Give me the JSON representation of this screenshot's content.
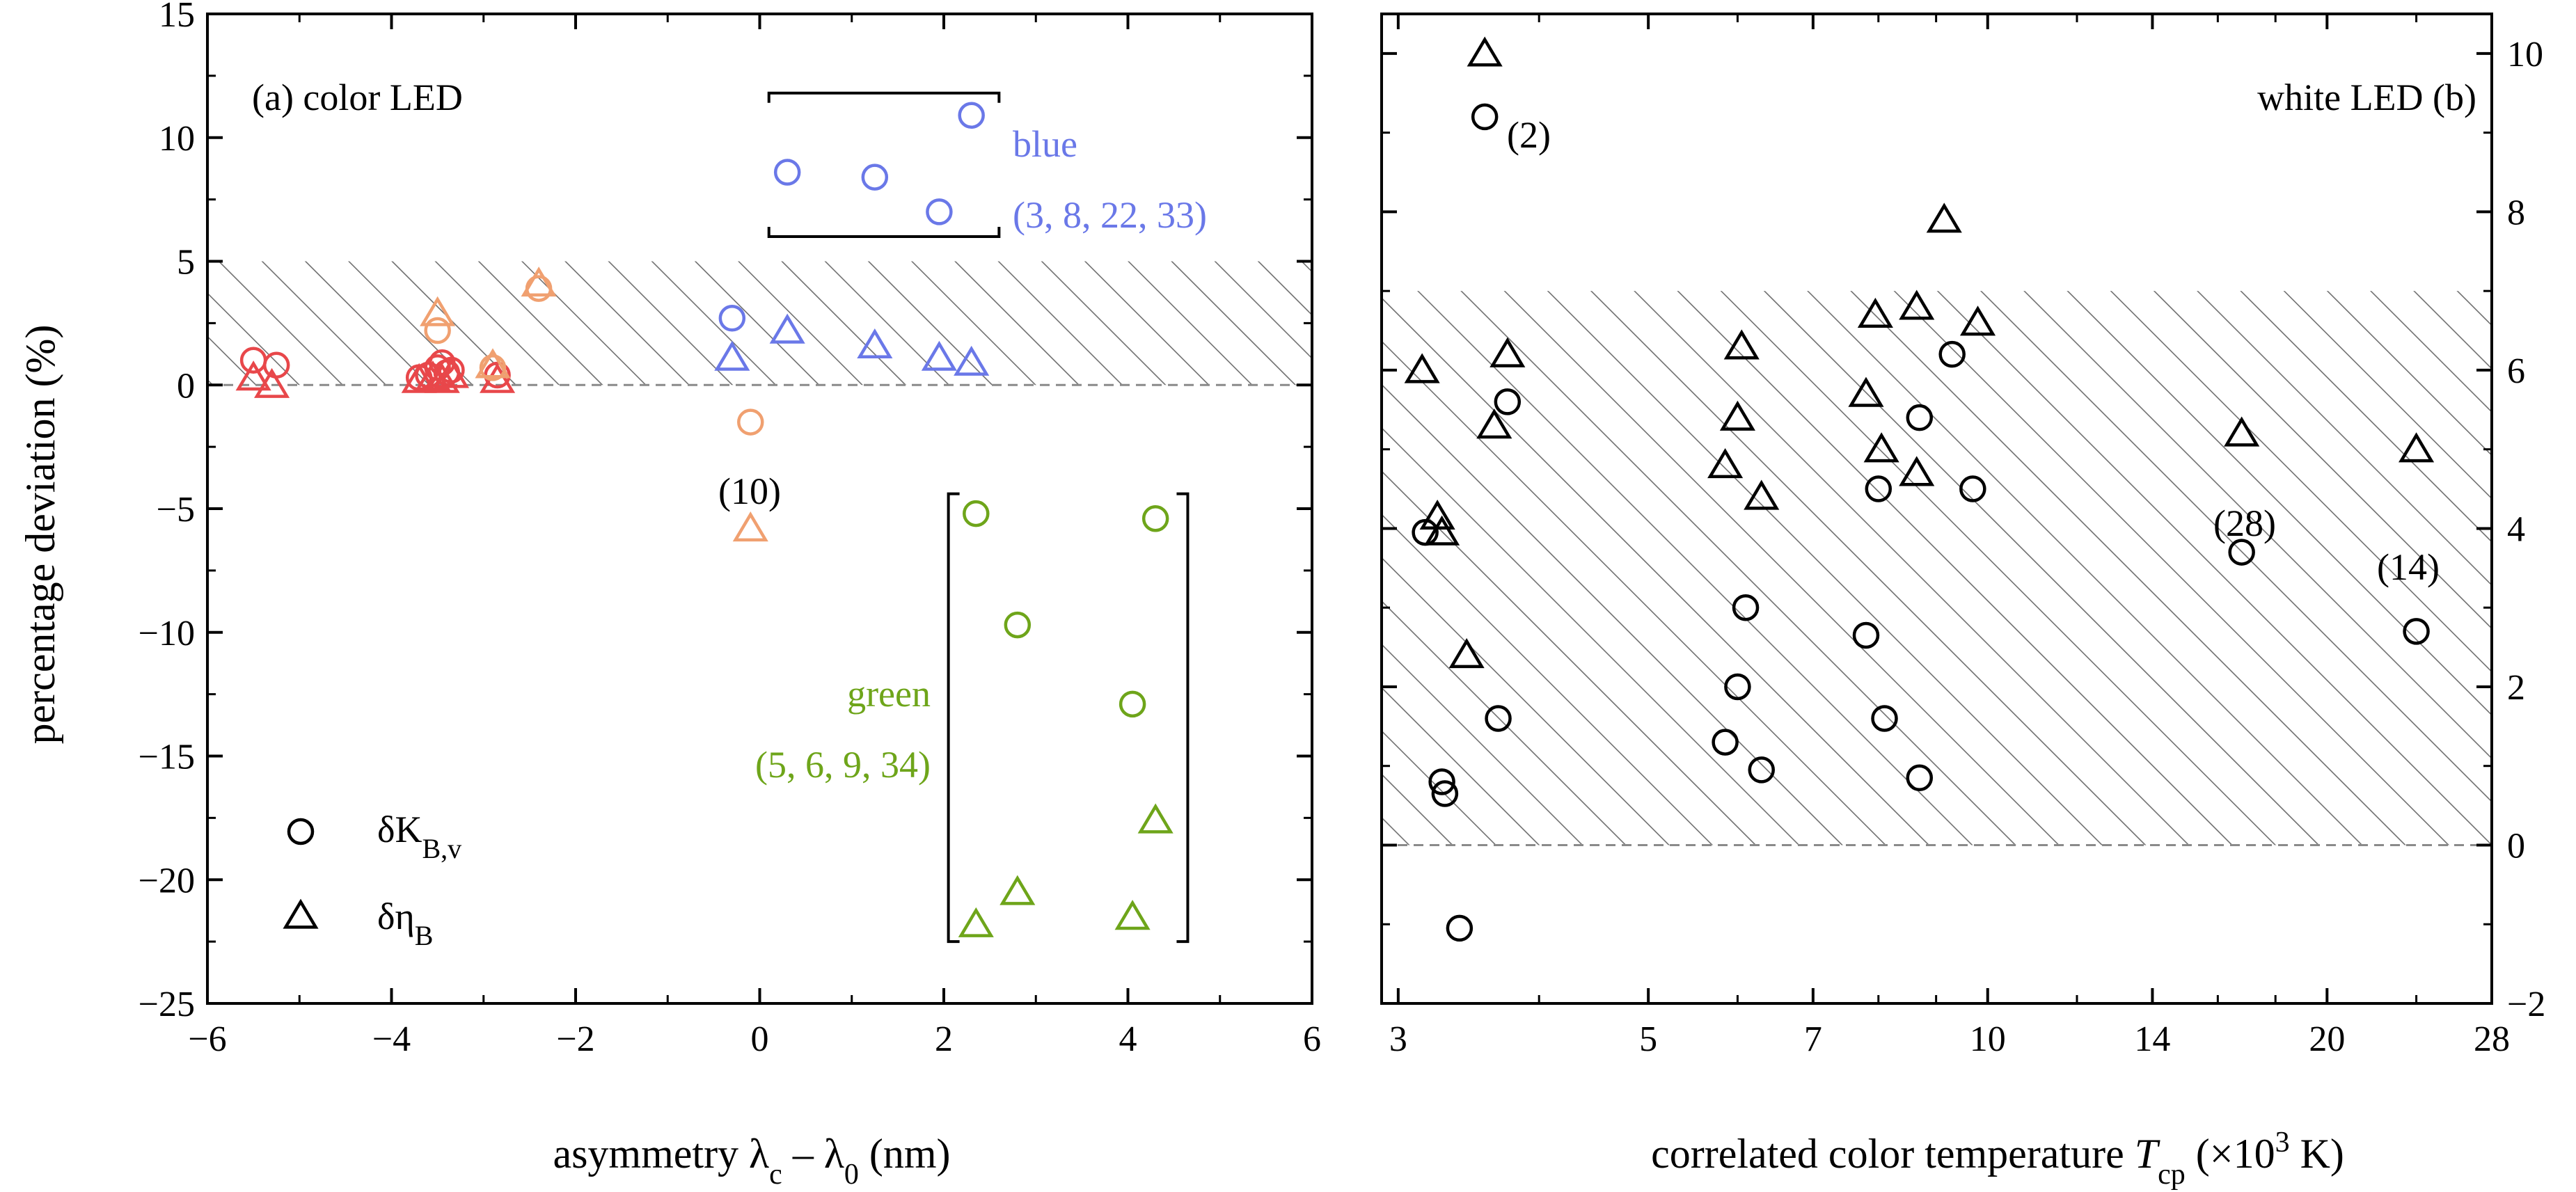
{
  "chart_data": [
    {
      "panel": "a",
      "type": "scatter",
      "annotation": "(a) color LED",
      "xlabel": {
        "prefix": "asymmetry λ",
        "sub1": "c",
        "mid": " – λ",
        "sub2": "0",
        "suffix": " (nm)"
      },
      "ylabel": "percentage deviation (%)",
      "xlim": [
        -6,
        6
      ],
      "ylim": [
        -25,
        15
      ],
      "xticks": [
        -6,
        -4,
        -2,
        0,
        2,
        4,
        6
      ],
      "xtick_labels": [
        "−6",
        "−4",
        "−2",
        "0",
        "2",
        "4",
        "6"
      ],
      "yticks": [
        -25,
        -20,
        -15,
        -10,
        -5,
        0,
        5,
        10,
        15
      ],
      "ytick_labels": [
        "−25",
        "−20",
        "−15",
        "−10",
        "−5",
        "0",
        "5",
        "10",
        "15"
      ],
      "hatched_band": [
        0,
        5
      ],
      "dashed_reference": 0,
      "legend": {
        "position": "bottom-left",
        "entries": [
          {
            "marker": "circle",
            "main": "δK",
            "sub": "B,v"
          },
          {
            "marker": "triangle",
            "main": "δη",
            "sub": "B"
          }
        ]
      },
      "colors": {
        "red": "#e8474a",
        "orange": "#f0a070",
        "blue": "#6a78e8",
        "green": "#6ea51a"
      },
      "labels": {
        "blue": [
          "blue",
          "(3, 8, 22, 33)"
        ],
        "green": [
          "green",
          "(5, 6, 9, 34)"
        ],
        "ten": "(10)"
      },
      "series": [
        {
          "name": "δK_B,v red",
          "marker": "circle",
          "color": "red",
          "points": [
            [
              -5.5,
              1.0
            ],
            [
              -5.25,
              0.8
            ],
            [
              -3.7,
              0.3
            ],
            [
              -3.6,
              0.4
            ],
            [
              -3.5,
              0.7
            ],
            [
              -3.45,
              0.9
            ],
            [
              -3.4,
              0.5
            ],
            [
              -3.35,
              0.6
            ],
            [
              -2.85,
              0.4
            ]
          ]
        },
        {
          "name": "δη_B red",
          "marker": "triangle",
          "color": "red",
          "points": [
            [
              -5.5,
              0.3
            ],
            [
              -5.3,
              0.0
            ],
            [
              -3.7,
              0.2
            ],
            [
              -3.55,
              0.3
            ],
            [
              -3.45,
              0.2
            ],
            [
              -3.35,
              0.4
            ],
            [
              -2.85,
              0.2
            ]
          ]
        },
        {
          "name": "δK_B,v orange",
          "marker": "circle",
          "color": "orange",
          "points": [
            [
              -3.5,
              2.2
            ],
            [
              -2.4,
              3.9
            ],
            [
              -2.9,
              0.7
            ],
            [
              -0.1,
              -1.5
            ]
          ]
        },
        {
          "name": "δη_B orange",
          "marker": "triangle",
          "color": "orange",
          "points": [
            [
              -3.5,
              2.9
            ],
            [
              -2.4,
              4.1
            ],
            [
              -2.9,
              0.8
            ],
            [
              -0.1,
              -5.8
            ]
          ]
        },
        {
          "name": "δK_B,v blue",
          "marker": "circle",
          "color": "blue",
          "points": [
            [
              -0.3,
              2.7
            ],
            [
              0.3,
              8.6
            ],
            [
              1.25,
              8.4
            ],
            [
              1.95,
              7.0
            ],
            [
              2.3,
              10.9
            ]
          ]
        },
        {
          "name": "δη_B blue",
          "marker": "triangle",
          "color": "blue",
          "points": [
            [
              -0.3,
              1.1
            ],
            [
              0.3,
              2.2
            ],
            [
              1.25,
              1.6
            ],
            [
              1.95,
              1.1
            ],
            [
              2.3,
              0.9
            ]
          ]
        },
        {
          "name": "δK_B,v green",
          "marker": "circle",
          "color": "green",
          "points": [
            [
              2.35,
              -5.2
            ],
            [
              2.8,
              -9.7
            ],
            [
              4.05,
              -12.9
            ],
            [
              4.3,
              -5.4
            ]
          ]
        },
        {
          "name": "δη_B green",
          "marker": "triangle",
          "color": "green",
          "points": [
            [
              2.35,
              -21.8
            ],
            [
              2.8,
              -20.5
            ],
            [
              4.05,
              -21.5
            ],
            [
              4.3,
              -17.6
            ]
          ]
        }
      ]
    },
    {
      "panel": "b",
      "type": "scatter",
      "annotation": "white LED (b)",
      "xlabel": {
        "prefix": "correlated color temperature ",
        "italic": "T",
        "sub": "cp",
        "unit_open": " (×10",
        "sup": "3",
        "unit_close": " K)"
      },
      "x_scale": "log",
      "xlim": [
        2.9,
        28
      ],
      "ylim": [
        -2,
        10.5
      ],
      "xticks": [
        3,
        5,
        7,
        10,
        14,
        20,
        28
      ],
      "xtick_labels": [
        "3",
        "5",
        "7",
        "10",
        "14",
        "20",
        "28"
      ],
      "yticks": [
        -2,
        0,
        2,
        4,
        6,
        8,
        10
      ],
      "ytick_labels": [
        "−2",
        "0",
        "2",
        "4",
        "6",
        "8",
        "10"
      ],
      "hatched_band": [
        0,
        7
      ],
      "dashed_reference": 0,
      "labels": {
        "two": "(2)",
        "twentyeight": "(28)",
        "fourteen": "(14)"
      },
      "series": [
        {
          "name": "δK_B,v",
          "marker": "circle",
          "color": "black",
          "points": [
            [
              3.58,
              9.2
            ],
            [
              3.75,
              5.6
            ],
            [
              3.68,
              1.6
            ],
            [
              3.17,
              3.95
            ],
            [
              3.28,
              0.8
            ],
            [
              3.3,
              0.65
            ],
            [
              3.4,
              -1.05
            ],
            [
              5.85,
              1.3
            ],
            [
              6.0,
              2.0
            ],
            [
              6.1,
              3.0
            ],
            [
              6.3,
              0.95
            ],
            [
              7.8,
              2.65
            ],
            [
              8.0,
              4.5
            ],
            [
              8.1,
              1.6
            ],
            [
              8.7,
              5.4
            ],
            [
              8.7,
              0.85
            ],
            [
              9.3,
              6.2
            ],
            [
              9.7,
              4.5
            ],
            [
              16.8,
              3.7
            ],
            [
              24.0,
              2.7
            ]
          ]
        },
        {
          "name": "δη_B",
          "marker": "triangle",
          "color": "black",
          "points": [
            [
              3.58,
              10.0
            ],
            [
              3.15,
              6.0
            ],
            [
              3.75,
              6.2
            ],
            [
              3.65,
              5.3
            ],
            [
              3.25,
              4.15
            ],
            [
              3.28,
              3.95
            ],
            [
              3.45,
              2.4
            ],
            [
              5.85,
              4.8
            ],
            [
              6.0,
              5.4
            ],
            [
              6.05,
              6.3
            ],
            [
              6.3,
              4.4
            ],
            [
              7.8,
              5.7
            ],
            [
              7.95,
              6.7
            ],
            [
              8.05,
              5.0
            ],
            [
              8.65,
              6.8
            ],
            [
              8.65,
              4.7
            ],
            [
              9.15,
              7.9
            ],
            [
              9.8,
              6.6
            ],
            [
              16.8,
              5.2
            ],
            [
              24.0,
              5.0
            ]
          ]
        }
      ]
    }
  ]
}
